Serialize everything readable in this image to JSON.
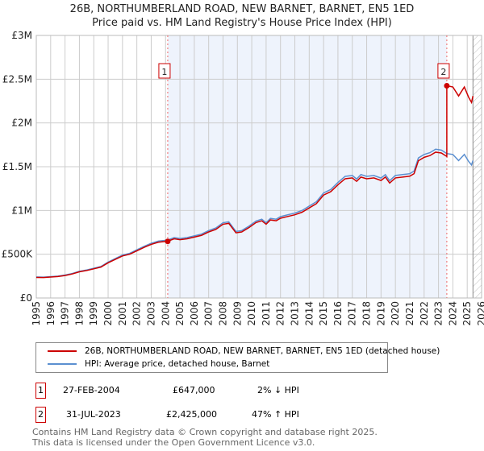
{
  "title": "26B, NORTHUMBERLAND ROAD, NEW BARNET, BARNET, EN5 1ED",
  "subtitle": "Price paid vs. HM Land Registry's House Price Index (HPI)",
  "chart_data": {
    "type": "line",
    "ylim": [
      0,
      3000000
    ],
    "xlim": [
      1995,
      2026
    ],
    "yticks": [
      {
        "v": 0,
        "l": "£0"
      },
      {
        "v": 500000,
        "l": "£500K"
      },
      {
        "v": 1000000,
        "l": "£1M"
      },
      {
        "v": 1500000,
        "l": "£1.5M"
      },
      {
        "v": 2000000,
        "l": "£2M"
      },
      {
        "v": 2500000,
        "l": "£2.5M"
      },
      {
        "v": 3000000,
        "l": "£3M"
      }
    ],
    "xticks": [
      "1995",
      "1996",
      "1997",
      "1998",
      "1999",
      "2000",
      "2001",
      "2002",
      "2003",
      "2004",
      "2005",
      "2006",
      "2007",
      "2008",
      "2009",
      "2010",
      "2011",
      "2012",
      "2013",
      "2014",
      "2015",
      "2016",
      "2017",
      "2018",
      "2019",
      "2020",
      "2021",
      "2022",
      "2023",
      "2024",
      "2025",
      "2026"
    ],
    "hatch_from": 2025.4,
    "series": [
      {
        "name": "HPI: Average price, detached house, Barnet",
        "color": "#5b8fd0",
        "x": [
          1995,
          1995.5,
          1996,
          1996.5,
          1997,
          1997.5,
          1998,
          1998.5,
          1999,
          1999.5,
          2000,
          2000.5,
          2001,
          2001.5,
          2002,
          2002.5,
          2003,
          2003.5,
          2004.15,
          2004.6,
          2005,
          2005.5,
          2006,
          2006.5,
          2007,
          2007.5,
          2008,
          2008.4,
          2008.9,
          2009.3,
          2009.8,
          2010.3,
          2010.7,
          2011,
          2011.3,
          2011.7,
          2012,
          2012.5,
          2013,
          2013.5,
          2014,
          2014.5,
          2015,
          2015.5,
          2016,
          2016.5,
          2017,
          2017.3,
          2017.6,
          2018,
          2018.5,
          2019,
          2019.3,
          2019.6,
          2020,
          2020.5,
          2021,
          2021.3,
          2021.6,
          2022,
          2022.4,
          2022.8,
          2023.2,
          2023.58,
          2024,
          2024.4,
          2024.8,
          2025.1,
          2025.3,
          2025.4
        ],
        "y": [
          240000,
          238000,
          244000,
          250000,
          262000,
          280000,
          305000,
          320000,
          340000,
          360000,
          410000,
          450000,
          490000,
          510000,
          550000,
          590000,
          625000,
          650000,
          662000,
          690000,
          680000,
          690000,
          710000,
          730000,
          770000,
          800000,
          860000,
          870000,
          760000,
          770000,
          820000,
          880000,
          900000,
          860000,
          910000,
          900000,
          930000,
          950000,
          970000,
          1000000,
          1050000,
          1100000,
          1200000,
          1240000,
          1320000,
          1390000,
          1400000,
          1360000,
          1410000,
          1390000,
          1400000,
          1370000,
          1410000,
          1340000,
          1400000,
          1410000,
          1420000,
          1450000,
          1600000,
          1640000,
          1660000,
          1700000,
          1690000,
          1650000,
          1640000,
          1570000,
          1640000,
          1560000,
          1520000,
          1570000
        ]
      },
      {
        "name": "26B, NORTHUMBERLAND ROAD, NEW BARNET, BARNET, EN5 1ED (detached house)",
        "color": "#cc0000",
        "derived_from": "HPI",
        "ratio_before_sale2": 0.98,
        "ratio_after_sale2": 1.47
      }
    ]
  },
  "sales": [
    {
      "num": "1",
      "date": "27-FEB-2004",
      "year": 2004.15,
      "price": "£647,000",
      "value": 647000,
      "hpi": "2% ↓ HPI"
    },
    {
      "num": "2",
      "date": "31-JUL-2023",
      "year": 2023.58,
      "price": "£2,425,000",
      "value": 2425000,
      "hpi": "47% ↑ HPI"
    }
  ],
  "legend": {
    "red": "26B, NORTHUMBERLAND ROAD, NEW BARNET, BARNET, EN5 1ED (detached house)",
    "blue": "HPI: Average price, detached house, Barnet"
  },
  "footer": [
    "Contains HM Land Registry data © Crown copyright and database right 2025.",
    "This data is licensed under the Open Government Licence v3.0."
  ]
}
